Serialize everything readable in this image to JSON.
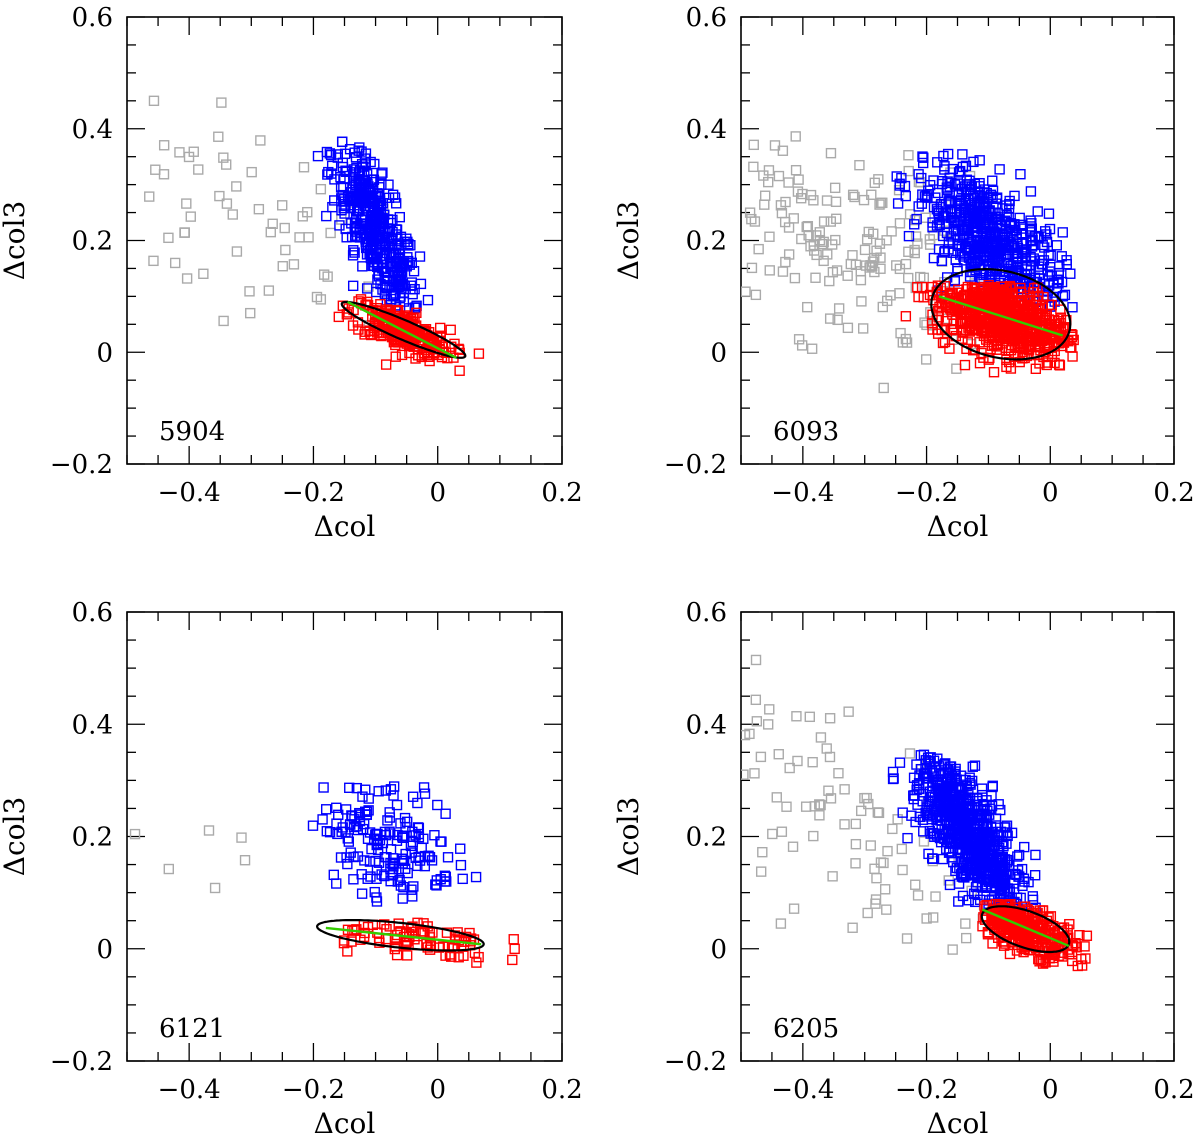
{
  "figure": {
    "point_colors": {
      "group_1": "#0000ff",
      "group_2": "#ff0000",
      "outliers": "#aaaaaa"
    },
    "ellipse_color": "#000000",
    "fit_line_color": "#33cc00",
    "marker": "open-square"
  },
  "chart_data": [
    {
      "type": "scatter",
      "label": "5904",
      "xlabel": "Δcol",
      "ylabel": "Δcol3",
      "xlim": [
        -0.5,
        0.2
      ],
      "ylim": [
        -0.2,
        0.6
      ],
      "xticks": [
        "−0.4",
        "−0.2",
        "0",
        "0.2"
      ],
      "yticks": [
        "−0.2",
        "0",
        "0.2",
        "0.4",
        "0.6"
      ],
      "grid": false,
      "series": [
        {
          "group": "outliers",
          "color": "#aaaaaa",
          "n": 60,
          "center": [
            -0.3,
            0.22
          ],
          "spread": [
            0.13,
            0.1
          ],
          "slope": -0.5,
          "xrange": [
            -0.5,
            0.2
          ],
          "yrange": [
            -0.02,
            0.58
          ]
        },
        {
          "group": "group_1",
          "color": "#0000ff",
          "n": 420,
          "center": [
            -0.1,
            0.22
          ],
          "spread": [
            0.035,
            0.05
          ],
          "slope": -1.9,
          "xrange": [
            -0.22,
            0.11
          ],
          "yrange": [
            0.07,
            0.38
          ]
        },
        {
          "group": "group_2",
          "color": "#ff0000",
          "n": 260,
          "center": [
            -0.06,
            0.04
          ],
          "spread": [
            0.04,
            0.018
          ],
          "slope": -0.45,
          "xrange": [
            -0.2,
            0.12
          ],
          "yrange": [
            -0.035,
            0.095
          ]
        }
      ],
      "ellipse": {
        "cx": -0.055,
        "cy": 0.04,
        "rx": 0.11,
        "ry": 0.017,
        "angle_data": -0.48
      },
      "fit_line": {
        "x": [
          -0.145,
          0.03
        ],
        "y": [
          0.09,
          -0.01
        ]
      }
    },
    {
      "type": "scatter",
      "label": "6093",
      "xlabel": "Δcol",
      "ylabel": "Δcol3",
      "xlim": [
        -0.5,
        0.2
      ],
      "ylim": [
        -0.2,
        0.6
      ],
      "xticks": [
        "−0.4",
        "−0.2",
        "0",
        "0.2"
      ],
      "yticks": [
        "−0.2",
        "0",
        "0.2",
        "0.4",
        "0.6"
      ],
      "grid": false,
      "series": [
        {
          "group": "outliers",
          "color": "#aaaaaa",
          "n": 170,
          "center": [
            -0.33,
            0.19
          ],
          "spread": [
            0.12,
            0.09
          ],
          "slope": -0.3,
          "xrange": [
            -0.5,
            0.2
          ],
          "yrange": [
            -0.13,
            0.56
          ]
        },
        {
          "group": "group_1",
          "color": "#0000ff",
          "n": 560,
          "center": [
            -0.1,
            0.2
          ],
          "spread": [
            0.06,
            0.055
          ],
          "slope": -0.8,
          "xrange": [
            -0.25,
            0.05
          ],
          "yrange": [
            0.08,
            0.36
          ]
        },
        {
          "group": "group_2",
          "color": "#ff0000",
          "n": 700,
          "center": [
            -0.08,
            0.065
          ],
          "spread": [
            0.055,
            0.035
          ],
          "slope": -0.3,
          "xrange": [
            -0.24,
            0.04
          ],
          "yrange": [
            -0.055,
            0.12
          ]
        }
      ],
      "ellipse": {
        "cx": -0.08,
        "cy": 0.068,
        "rx": 0.115,
        "ry": 0.077,
        "angle_data": -0.3
      },
      "fit_line": {
        "x": [
          -0.18,
          0.02
        ],
        "y": [
          0.1,
          0.03
        ]
      }
    },
    {
      "type": "scatter",
      "label": "6121",
      "xlabel": "Δcol",
      "ylabel": "Δcol3",
      "xlim": [
        -0.5,
        0.2
      ],
      "ylim": [
        -0.2,
        0.6
      ],
      "xticks": [
        "−0.4",
        "−0.2",
        "0",
        "0.2"
      ],
      "yticks": [
        "−0.2",
        "0",
        "0.2",
        "0.4",
        "0.6"
      ],
      "grid": false,
      "series": [
        {
          "group": "outliers",
          "color": "#aaaaaa",
          "n": 6,
          "center": [
            -0.4,
            0.18
          ],
          "spread": [
            0.06,
            0.06
          ],
          "slope": 0,
          "xrange": [
            -0.5,
            -0.3
          ],
          "yrange": [
            0.1,
            0.27
          ]
        },
        {
          "group": "group_1",
          "color": "#0000ff",
          "n": 170,
          "center": [
            -0.08,
            0.2
          ],
          "spread": [
            0.055,
            0.06
          ],
          "slope": -0.4,
          "xrange": [
            -0.24,
            0.09
          ],
          "yrange": [
            0.08,
            0.29
          ]
        },
        {
          "group": "group_2",
          "color": "#ff0000",
          "n": 85,
          "center": [
            -0.05,
            0.022
          ],
          "spread": [
            0.07,
            0.018
          ],
          "slope": -0.12,
          "xrange": [
            -0.2,
            0.13
          ],
          "yrange": [
            -0.025,
            0.06
          ]
        }
      ],
      "ellipse": {
        "cx": -0.06,
        "cy": 0.024,
        "rx": 0.135,
        "ry": 0.022,
        "angle_data": -0.12
      },
      "fit_line": {
        "x": [
          -0.18,
          0.07
        ],
        "y": [
          0.037,
          0.008
        ]
      }
    },
    {
      "type": "scatter",
      "label": "6205",
      "xlabel": "Δcol",
      "ylabel": "Δcol3",
      "xlim": [
        -0.5,
        0.2
      ],
      "ylim": [
        -0.2,
        0.6
      ],
      "xticks": [
        "−0.4",
        "−0.2",
        "0",
        "0.2"
      ],
      "yticks": [
        "−0.2",
        "0",
        "0.2",
        "0.4",
        "0.6"
      ],
      "grid": false,
      "series": [
        {
          "group": "outliers",
          "color": "#aaaaaa",
          "n": 95,
          "center": [
            -0.3,
            0.2
          ],
          "spread": [
            0.12,
            0.1
          ],
          "slope": -0.6,
          "xrange": [
            -0.5,
            0.0
          ],
          "yrange": [
            -0.1,
            0.54
          ]
        },
        {
          "group": "group_1",
          "color": "#0000ff",
          "n": 720,
          "center": [
            -0.13,
            0.2
          ],
          "spread": [
            0.045,
            0.05
          ],
          "slope": -1.3,
          "xrange": [
            -0.26,
            0.02
          ],
          "yrange": [
            0.07,
            0.35
          ]
        },
        {
          "group": "group_2",
          "color": "#ff0000",
          "n": 330,
          "center": [
            -0.04,
            0.035
          ],
          "spread": [
            0.04,
            0.02
          ],
          "slope": -0.4,
          "xrange": [
            -0.11,
            0.06
          ],
          "yrange": [
            -0.05,
            0.08
          ]
        }
      ],
      "ellipse": {
        "cx": -0.04,
        "cy": 0.035,
        "rx": 0.075,
        "ry": 0.032,
        "angle_data": -0.4
      },
      "fit_line": {
        "x": [
          -0.11,
          0.03
        ],
        "y": [
          0.07,
          0.005
        ]
      }
    }
  ]
}
